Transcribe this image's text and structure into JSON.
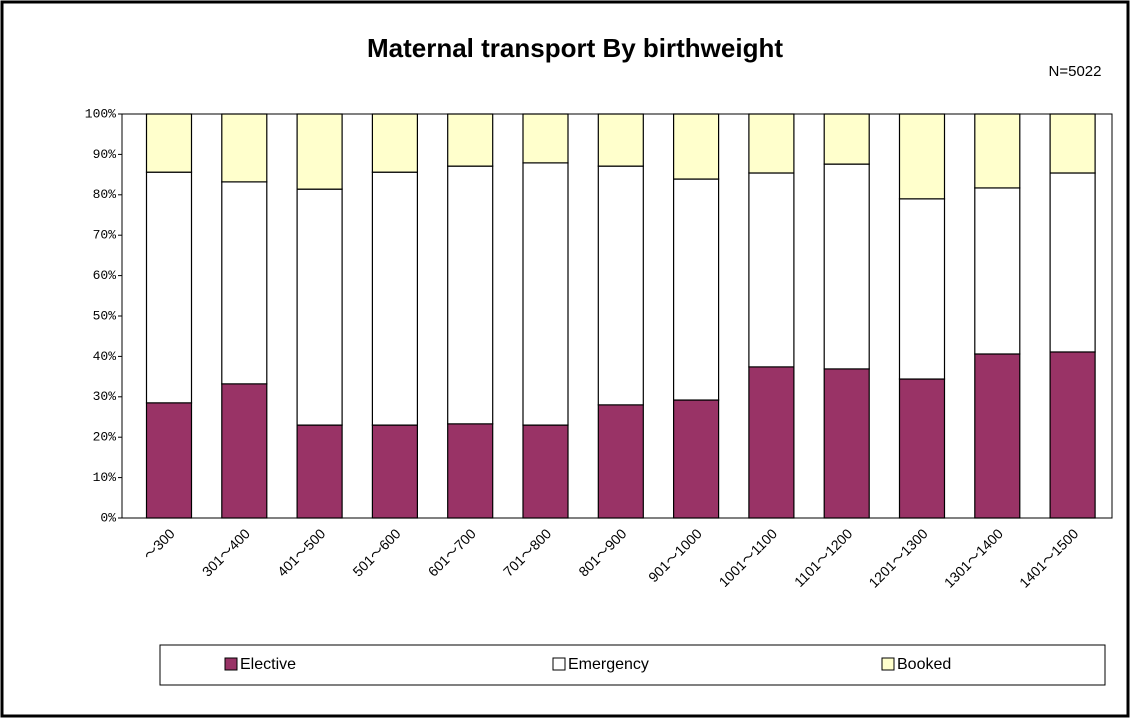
{
  "chart_data": {
    "type": "stacked_bar",
    "title": "Maternal transport By birthweight",
    "annotation": "N=5022",
    "categories": [
      "～300",
      "301～400",
      "401～500",
      "501～600",
      "601～700",
      "701～800",
      "801～900",
      "901～1000",
      "1001～1100",
      "1101～1200",
      "1201～1300",
      "1301～1400",
      "1401～1500"
    ],
    "series": [
      {
        "name": "Elective",
        "color": "#993366",
        "values": [
          28.5,
          33.2,
          23,
          23,
          23.3,
          23,
          28,
          29.2,
          37.4,
          36.9,
          34.4,
          40.6,
          41.1
        ]
      },
      {
        "name": "Emergency",
        "color": "#ffffff",
        "values": [
          57.1,
          50,
          58.4,
          62.6,
          63.8,
          64.9,
          59.1,
          54.7,
          48,
          50.7,
          44.6,
          41.1,
          44.3
        ]
      },
      {
        "name": "Booked",
        "color": "#ffffcc",
        "values": [
          14.4,
          16.8,
          18.6,
          14.4,
          12.9,
          12.1,
          12.9,
          16.1,
          14.6,
          12.4,
          21,
          18.3,
          14.6
        ]
      }
    ],
    "ylim": [
      0,
      100
    ],
    "yticks": [
      {
        "value": 0,
        "label": "0%"
      },
      {
        "value": 10,
        "label": "10%"
      },
      {
        "value": 20,
        "label": "20%"
      },
      {
        "value": 30,
        "label": "30%"
      },
      {
        "value": 40,
        "label": "40%"
      },
      {
        "value": 50,
        "label": "50%"
      },
      {
        "value": 60,
        "label": "60%"
      },
      {
        "value": 70,
        "label": "70%"
      },
      {
        "value": 80,
        "label": "80%"
      },
      {
        "value": 90,
        "label": "90%"
      },
      {
        "value": 100,
        "label": "100%"
      }
    ],
    "legend": "bottom"
  }
}
